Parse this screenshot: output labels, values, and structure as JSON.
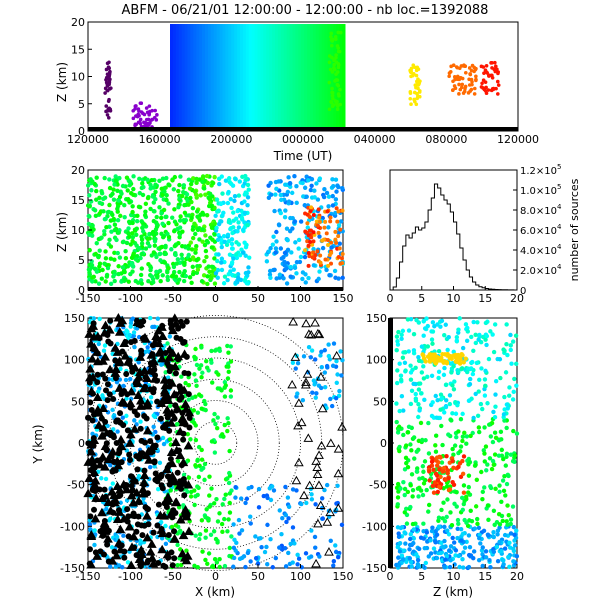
{
  "title": "ABFM - 06/21/01 12:00:00 - 12:00:00 - nb loc.=1392088",
  "chart_data": [
    {
      "type": "scatter",
      "panel": "time-height",
      "xlabel": "Time (UT)",
      "ylabel": "Z (km)",
      "xticks": [
        "120000",
        "160000",
        "200000",
        "000000",
        "040000",
        "080000",
        "120000"
      ],
      "yticks": [
        "0",
        "5",
        "10",
        "15",
        "20"
      ],
      "ylim": [
        0,
        20
      ]
    },
    {
      "type": "scatter",
      "panel": "x-height",
      "xlabel": "",
      "ylabel": "Z (km)",
      "xticks": [
        "-150",
        "-100",
        "-50",
        "0",
        "50",
        "100",
        "150"
      ],
      "yticks": [
        "0",
        "5",
        "10",
        "15",
        "20"
      ],
      "xlim": [
        -150,
        150
      ],
      "ylim": [
        0,
        20
      ]
    },
    {
      "type": "line",
      "panel": "histogram",
      "ylabel": "number of sources",
      "xticks": [
        "0",
        "5",
        "10",
        "15",
        "20"
      ],
      "xlim": [
        0,
        20
      ],
      "ylim": [
        0,
        120000
      ],
      "yticks": [
        {
          "mant": "0",
          "exp": ""
        },
        {
          "mant": "2.0×10",
          "exp": "4"
        },
        {
          "mant": "4.0×10",
          "exp": "4"
        },
        {
          "mant": "6.0×10",
          "exp": "4"
        },
        {
          "mant": "8.0×10",
          "exp": "4"
        },
        {
          "mant": "1.0×10",
          "exp": "5"
        },
        {
          "mant": "1.2×10",
          "exp": "5"
        }
      ],
      "x": [
        0,
        0.5,
        1,
        1.5,
        2,
        2.5,
        3,
        3.5,
        4,
        4.5,
        5,
        5.5,
        6,
        6.5,
        7,
        7.5,
        8,
        8.5,
        9,
        9.5,
        10,
        10.5,
        11,
        11.5,
        12,
        12.5,
        13,
        13.5,
        14,
        14.5,
        15,
        15.5,
        16,
        16.5,
        17,
        17.5,
        18,
        18.5,
        19,
        19.5,
        20
      ],
      "y": [
        0,
        3000,
        12000,
        28000,
        44000,
        55000,
        52000,
        57000,
        63000,
        60000,
        62000,
        68000,
        80000,
        92000,
        106000,
        102000,
        95000,
        90000,
        86000,
        78000,
        68000,
        56000,
        42000,
        30000,
        20000,
        13000,
        8000,
        5000,
        3200,
        2200,
        1500,
        1000,
        700,
        500,
        400,
        300,
        200,
        150,
        100,
        60,
        0
      ]
    },
    {
      "type": "scatter",
      "panel": "plan-view",
      "xlabel": "X (km)",
      "ylabel": "Y (km)",
      "xticks": [
        "-150",
        "-100",
        "-50",
        "0",
        "50",
        "100",
        "150"
      ],
      "yticks": [
        "-150",
        "-100",
        "-50",
        "0",
        "50",
        "100",
        "150"
      ],
      "xlim": [
        -150,
        150
      ],
      "ylim": [
        -150,
        150
      ]
    },
    {
      "type": "scatter",
      "panel": "z-y",
      "xlabel": "Z (km)",
      "xticks": [
        "0",
        "5",
        "10",
        "15",
        "20"
      ],
      "yticks": [
        "-150",
        "-100",
        "-50",
        "0",
        "50",
        "100",
        "150"
      ],
      "xlim": [
        0,
        20
      ],
      "ylim": [
        -150,
        150
      ]
    }
  ]
}
